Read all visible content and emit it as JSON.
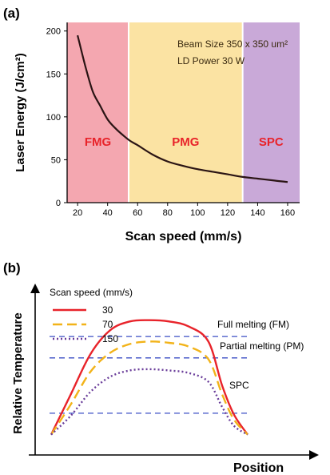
{
  "panel_a_label": "(a)",
  "panel_b_label": "(b)",
  "chart_data": [
    {
      "type": "line",
      "xlabel": "Scan speed (mm/s)",
      "ylabel": "Laser Energy (J/cm²)",
      "xlim": [
        13,
        168
      ],
      "ylim": [
        0,
        210
      ],
      "xticks": [
        20,
        40,
        60,
        80,
        100,
        120,
        140,
        160
      ],
      "yticks": [
        0,
        50,
        100,
        150,
        200
      ],
      "grid": false,
      "annotations": [
        "Beam Size 350 x 350 um²",
        "LD Power 30 W"
      ],
      "regions": [
        {
          "label": "FMG",
          "x_from": 13,
          "x_to": 54,
          "color": "#f4a7b0",
          "label_color": "#e8232a"
        },
        {
          "label": "PMG",
          "x_from": 54,
          "x_to": 130,
          "color": "#fbe3a3",
          "label_color": "#e8232a"
        },
        {
          "label": "SPC",
          "x_from": 130,
          "x_to": 168,
          "color": "#c9a9d8",
          "label_color": "#e8232a"
        }
      ],
      "series": [
        {
          "color": "#2a1414",
          "x": [
            20,
            25,
            30,
            35,
            40,
            45,
            50,
            55,
            60,
            70,
            80,
            90,
            100,
            110,
            120,
            130,
            140,
            150,
            160
          ],
          "values": [
            195,
            160,
            130,
            113,
            97,
            87,
            79,
            72,
            67,
            56,
            48,
            43,
            39,
            36,
            33,
            30,
            28,
            26,
            24
          ]
        }
      ]
    },
    {
      "type": "line",
      "xlabel": "Position",
      "ylabel": "Relative Temperature",
      "legend_title": "Scan speed (mm/s)",
      "legend_position": "top-left",
      "xlim": [
        0,
        100
      ],
      "ylim": [
        0,
        100
      ],
      "grid": false,
      "thresholds": [
        {
          "label": "Full melting (FM)",
          "y": 84
        },
        {
          "label": "Partial melting (PM)",
          "y": 67
        },
        {
          "label": "SPC",
          "y": 23
        }
      ],
      "series": [
        {
          "name": "30",
          "color": "#e8232a",
          "dash": "solid",
          "x": [
            0,
            10,
            20,
            30,
            40,
            50,
            60,
            70,
            80,
            87,
            93,
            100
          ],
          "values": [
            6,
            38,
            70,
            89,
            96,
            97,
            96,
            92,
            80,
            45,
            22,
            6
          ]
        },
        {
          "name": "70",
          "color": "#f2b319",
          "dash": "dashed",
          "x": [
            0,
            10,
            20,
            30,
            40,
            50,
            60,
            70,
            80,
            87,
            93,
            100
          ],
          "values": [
            6,
            30,
            56,
            71,
            78,
            80,
            79,
            76,
            66,
            38,
            18,
            6
          ]
        },
        {
          "name": "150",
          "color": "#6a3d9a",
          "dash": "dotted",
          "x": [
            0,
            10,
            20,
            30,
            40,
            50,
            60,
            70,
            80,
            87,
            93,
            100
          ],
          "values": [
            6,
            21,
            40,
            52,
            57,
            58,
            57,
            55,
            48,
            28,
            13,
            6
          ]
        }
      ]
    }
  ]
}
